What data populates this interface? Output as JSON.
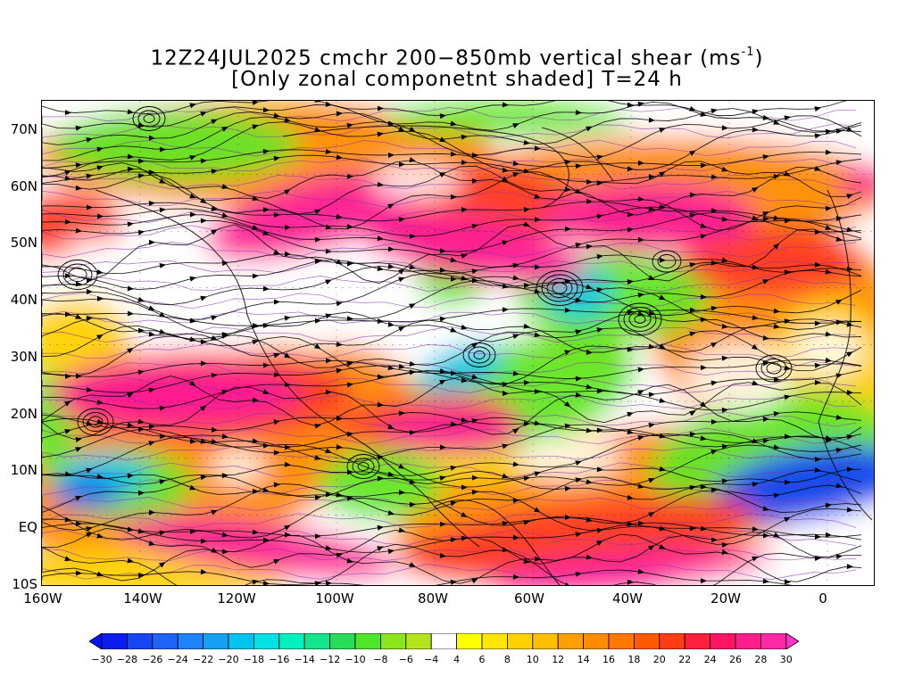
{
  "title_line1": "12Z24JUL2025 cmchr 200−850mb vertical shear (ms",
  "title_unit_exp": "-1",
  "title_line1_end": ")",
  "title_line2": "[Only zonal componetnt shaded] T=24 h",
  "lat_labels": [
    "70N",
    "60N",
    "50N",
    "40N",
    "30N",
    "20N",
    "10N",
    "EQ",
    "10S"
  ],
  "lon_labels": [
    "160W",
    "140W",
    "120W",
    "100W",
    "80W",
    "60W",
    "40W",
    "20W",
    "0"
  ],
  "colorbar": {
    "labels": [
      "−30",
      "−28",
      "−26",
      "−24",
      "−22",
      "−20",
      "−18",
      "−16",
      "−14",
      "−12",
      "−10",
      "−8",
      "−6",
      "−4",
      "4",
      "6",
      "8",
      "10",
      "12",
      "14",
      "16",
      "18",
      "20",
      "22",
      "24",
      "26",
      "28",
      "30"
    ],
    "colors": [
      "#0a1ef0",
      "#1446f5",
      "#1e64f8",
      "#1e82fa",
      "#14a0f5",
      "#00c3f0",
      "#00e1e6",
      "#00f0be",
      "#14e68c",
      "#28dc5a",
      "#50e628",
      "#8ce61e",
      "#b4e61e",
      "#ffffff",
      "#ffff00",
      "#ffe600",
      "#ffd200",
      "#ffbe00",
      "#ffa000",
      "#ff8c00",
      "#ff7800",
      "#ff5a00",
      "#ff3c14",
      "#ff1e3c",
      "#ff1464",
      "#ff1e8c",
      "#ff28a8"
    ],
    "low_end_color": "#0014ff",
    "high_end_color": "#ff32c8"
  },
  "colors": {
    "pink": "#ff1e96",
    "red": "#ff3c28",
    "orange": "#ff8c00",
    "yellow": "#ffd200",
    "green": "#64e628",
    "cyan": "#00c8e6",
    "blue": "#1446f5",
    "contour": "#8c28b4",
    "streamline": "#000000"
  }
}
